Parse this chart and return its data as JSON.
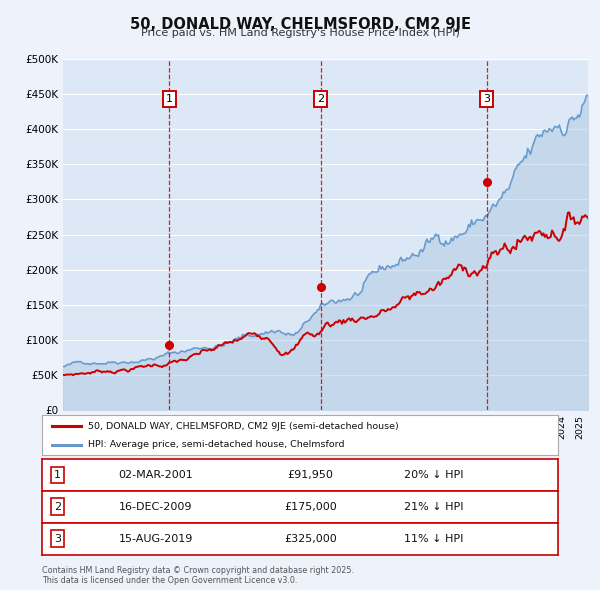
{
  "title": "50, DONALD WAY, CHELMSFORD, CM2 9JE",
  "subtitle": "Price paid vs. HM Land Registry's House Price Index (HPI)",
  "ylim": [
    0,
    500000
  ],
  "yticks": [
    0,
    50000,
    100000,
    150000,
    200000,
    250000,
    300000,
    350000,
    400000,
    450000,
    500000
  ],
  "ytick_labels": [
    "£0",
    "£50K",
    "£100K",
    "£150K",
    "£200K",
    "£250K",
    "£300K",
    "£350K",
    "£400K",
    "£450K",
    "£500K"
  ],
  "xlim": [
    1995,
    2025.5
  ],
  "background_color": "#eef2fa",
  "plot_bg_color": "#dce8f5",
  "grid_color": "#ffffff",
  "red_line_color": "#cc0000",
  "blue_line_color": "#6699cc",
  "blue_fill_color": "#aac4e0",
  "vline_color": "#cc0000",
  "sale_points": [
    {
      "year": 2001.17,
      "value": 91950,
      "label": "1"
    },
    {
      "year": 2009.96,
      "value": 175000,
      "label": "2"
    },
    {
      "year": 2019.62,
      "value": 325000,
      "label": "3"
    }
  ],
  "legend_items": [
    {
      "label": "50, DONALD WAY, CHELMSFORD, CM2 9JE (semi-detached house)",
      "color": "#cc0000"
    },
    {
      "label": "HPI: Average price, semi-detached house, Chelmsford",
      "color": "#6699cc"
    }
  ],
  "table_rows": [
    {
      "num": "1",
      "date": "02-MAR-2001",
      "price": "£91,950",
      "hpi": "20% ↓ HPI"
    },
    {
      "num": "2",
      "date": "16-DEC-2009",
      "price": "£175,000",
      "hpi": "21% ↓ HPI"
    },
    {
      "num": "3",
      "date": "15-AUG-2019",
      "price": "£325,000",
      "hpi": "11% ↓ HPI"
    }
  ],
  "footnote": "Contains HM Land Registry data © Crown copyright and database right 2025.\nThis data is licensed under the Open Government Licence v3.0."
}
